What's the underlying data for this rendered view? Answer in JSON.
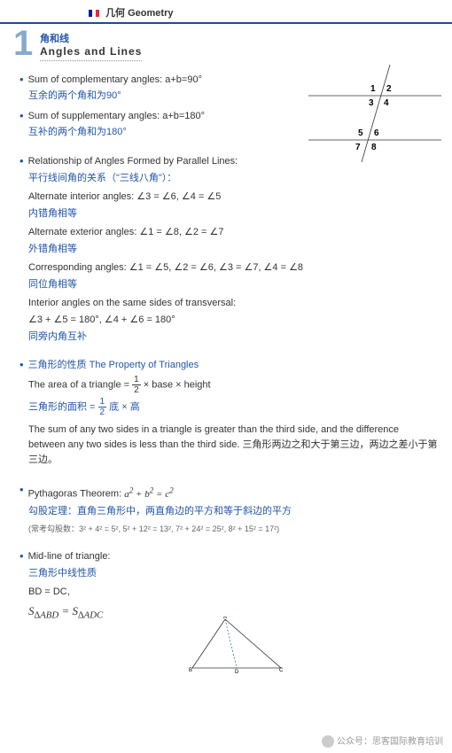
{
  "header": {
    "cn": "几何",
    "en": "Geometry"
  },
  "chapter": {
    "num": "1",
    "cn": "角和线",
    "en": "Angles and Lines"
  },
  "items": [
    {
      "en": "Sum of complementary angles:  a+b=90°",
      "cn": "互余的两个角和为90°"
    },
    {
      "en": "Sum of supplementary angles:  a+b=180°",
      "cn": "互补的两个角和为180°"
    }
  ],
  "rel": {
    "title": "Relationship of Angles Formed by Parallel Lines:",
    "title_cn": "平行线间角的关系（\"三线八角\"）：",
    "rows": [
      {
        "en": "Alternate interior angles:  ∠3 = ∠6, ∠4 = ∠5",
        "cn": "内错角相等"
      },
      {
        "en": "Alternate exterior angles:  ∠1 = ∠8, ∠2 = ∠7",
        "cn": "外错角相等"
      },
      {
        "en": "Corresponding angles: ∠1 = ∠5, ∠2 = ∠6, ∠3 = ∠7, ∠4 = ∠8",
        "cn": "同位角相等"
      },
      {
        "en": "Interior angles on the same sides of transversal:",
        "eq": "∠3 + ∠5 = 180°, ∠4 + ∠6 = 180°",
        "cn": "同旁内角互补"
      }
    ]
  },
  "tri": {
    "title": "三角形的性质 The Property of Triangles",
    "area_en_pre": "The area of a triangle  = ",
    "area_en_post": "× base × height",
    "area_cn_pre": "三角形的面积 = ",
    "area_cn_post": " 底 × 高",
    "sum": "The sum of any two sides in a triangle is greater than the third side, and the difference between any two sides is less than the third side. 三角形两边之和大于第三边，两边之差小于第三边。"
  },
  "pyth": {
    "title_pre": "Pythagoras Theorem:  ",
    "formula_html": "a<sup>2</sup> + b<sup>2</sup> = c<sup>2</sup>",
    "cn": "勾股定理：直角三角形中，两直角边的平方和等于斜边的平方",
    "note": "(常考勾股数：3² + 4² = 5², 5² + 12² = 13², 7² + 24² = 25², 8² + 15² = 17²)"
  },
  "mid": {
    "title": "Mid-line of triangle:",
    "cn": "三角形中线性质",
    "eq1": "BD = DC,",
    "eq2_html": "S<sub>∆ABD</sub> = S<sub>∆ADC</sub>"
  },
  "diagram": {
    "labels": [
      "1",
      "2",
      "3",
      "4",
      "5",
      "6",
      "7",
      "8"
    ]
  },
  "footer": {
    "label": "公众号：思客国际教育培训"
  }
}
